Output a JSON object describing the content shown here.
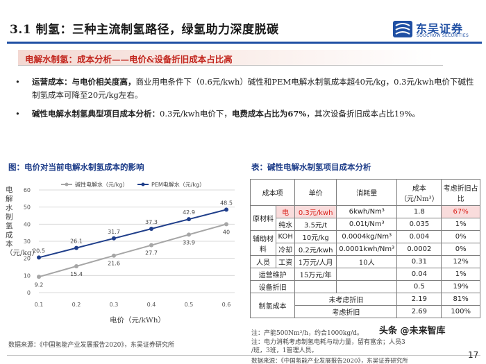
{
  "header": {
    "title": "3.1 制氢：三种主流制氢路径，绿氢助力深度脱碳",
    "logo_cn": "东吴证券",
    "logo_en": "SOOCHOW SECURITIES",
    "brand_color": "#1f4fa3"
  },
  "section": {
    "title": "电解水制氢：成本分析——电价&设备折旧成本占比高"
  },
  "bullets": [
    {
      "bold": "运营成本：与电价相关度高，",
      "text": "商业用电条件下（0.6元/kwh）碱性和PEM电解水制氢成本超40元/kg，0.3元/kwh电价下碱性制氢成本可降至20元/kg左右。"
    },
    {
      "bold1": "碱性电解水制氢典型项目成本分析：",
      "text1": "0.3元/kwh电价下，",
      "bold2": "电费成本占比为67%",
      "text2": "，其次设备折旧成本占比19%。"
    }
  ],
  "figure": {
    "title": "图：电价对当前电解水制氢成本的影响",
    "ylabel": "电解水制氢成本（元/kg）",
    "xlabel": "电价（元/kWh）",
    "source": "数据来源：《中国氢能产业发展报告2020》，东吴证券研究所"
  },
  "chart_data": {
    "type": "line",
    "x": [
      0.1,
      0.2,
      0.3,
      0.4,
      0.5,
      0.6
    ],
    "xticks": [
      "0.1",
      "0.2",
      "0.3",
      "0.4",
      "0.5",
      "0.6"
    ],
    "ylim": [
      0,
      60
    ],
    "yticks": [
      "0",
      "10",
      "20",
      "30",
      "40",
      "50",
      "60"
    ],
    "grid": true,
    "legend_position": "top",
    "series": [
      {
        "name": "碱性电解水（元/kg）",
        "values": [
          9.2,
          15.4,
          21.6,
          27.7,
          33.9,
          40.0
        ],
        "labels": [
          "9.2",
          "15.4",
          "21.6",
          "27.7",
          "33.9",
          "40"
        ],
        "color": "#a6a6a6"
      },
      {
        "name": "PEM电解水（元/kg）",
        "values": [
          20.5,
          26.1,
          31.7,
          37.3,
          42.9,
          48.5
        ],
        "labels": [
          "20.5",
          "26.1",
          "31.7",
          "37.3",
          "42.9",
          "48.5"
        ],
        "color": "#1f3e8a"
      }
    ]
  },
  "table": {
    "title": "表：碱性电解水制氢项目成本分析",
    "headers": {
      "item": "成本项",
      "price": "单价",
      "consumption": "消耗量",
      "cost": "成本（元/Nm³）",
      "share": "考虑折旧占比"
    },
    "raw_material": "原材料",
    "auxiliary": "辅助材料",
    "rows": {
      "electricity": {
        "name": "电",
        "price": "0.3元/kwh",
        "consumption": "6kwh/Nm³",
        "cost": "1.8",
        "share": "67%"
      },
      "water": {
        "name": "纯水",
        "price": "3.5元/t",
        "consumption": "0.01t/Nm³",
        "cost": "0.035",
        "share": "1%"
      },
      "koh": {
        "name": "KOH",
        "price": "10元/kg",
        "consumption": "0.0004kg/Nm³",
        "cost": "0.004",
        "share": "0%"
      },
      "cooling": {
        "name": "冷却",
        "price": "0.2元/kwh",
        "consumption": "0.0001kwh/Nm³",
        "cost": "0.0002",
        "share": "0%"
      },
      "labor": {
        "cat": "人员",
        "name": "工资",
        "price": "1万元/人月",
        "consumption": "10人",
        "cost": "0.31",
        "share": "12%"
      },
      "maintenance": {
        "name": "运营维护",
        "price": "15万元/年",
        "cost": "0.04",
        "share": "1%"
      },
      "depreciation": {
        "name": "设备折旧",
        "cost": "0.5",
        "share": "19%"
      },
      "total": {
        "name": "制氢成本",
        "no_dep": "未考虑折旧",
        "no_dep_cost": "2.19",
        "no_dep_share": "81%",
        "dep": "考虑折旧",
        "dep_cost": "2.69",
        "dep_share": "100%"
      }
    },
    "notes": [
      "注：产能500Nm³/h，约合1000kg/d。",
      "注：电力消耗考虑制氢电耗与动力量，留有富余；人员3",
      "/班，3班，1管理人员。"
    ],
    "source": "数据来源：《中国氢能产业发展报告2020》，东吴证券研究所"
  },
  "watermark": "头条 @未来智库",
  "page_number": "17"
}
